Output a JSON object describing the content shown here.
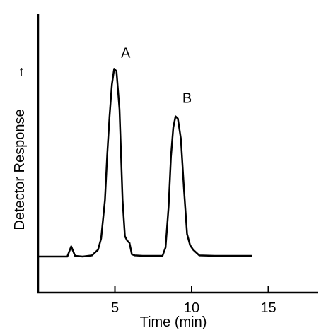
{
  "chart_data": {
    "type": "line",
    "title": "",
    "xlabel": "Time (min)",
    "ylabel": "Detector Response",
    "ylabel_arrow": "→",
    "xlim": [
      0,
      18
    ],
    "ylim": [
      0,
      100
    ],
    "xticks": [
      5,
      10,
      15
    ],
    "grid": false,
    "series": [
      {
        "x": [
          0,
          1.9,
          2.15,
          2.4,
          2.9,
          3.5,
          3.9,
          4.1,
          4.35,
          4.5,
          4.65,
          4.8,
          4.95,
          5.1,
          5.3,
          5.5,
          5.65,
          5.8,
          5.95,
          6.1,
          6.3,
          6.8,
          7.5,
          8.1,
          8.3,
          8.5,
          8.65,
          8.8,
          8.95,
          9.1,
          9.3,
          9.5,
          9.7,
          9.9,
          10.1,
          10.5,
          11.5,
          13.9
        ],
        "y": [
          0,
          0,
          4.5,
          0.3,
          0,
          0.5,
          3,
          8,
          25,
          45,
          62,
          76,
          83,
          82,
          65,
          25,
          9,
          7,
          6,
          1,
          0.5,
          0.3,
          0.3,
          0.3,
          4,
          22,
          44,
          57,
          62,
          61,
          52,
          30,
          10,
          5,
          3,
          0.5,
          0.3,
          0.3
        ]
      }
    ],
    "annotations": [
      {
        "text": "A",
        "x": 5.7,
        "y": 88
      },
      {
        "text": "B",
        "x": 9.7,
        "y": 68
      }
    ]
  }
}
